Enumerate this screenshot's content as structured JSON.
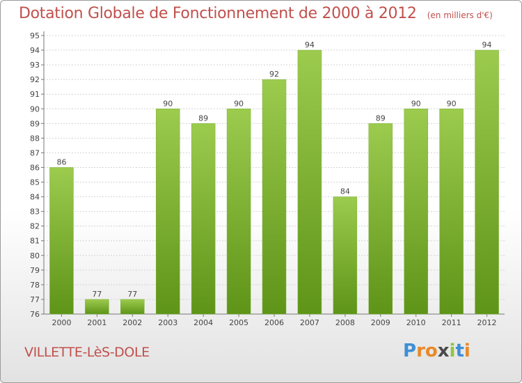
{
  "header": {
    "title": "Dotation Globale de Fonctionnement de 2000 à 2012",
    "subtitle": "(en milliers d'€)"
  },
  "footer": {
    "commune": "VILLETTE-LèS-DOLE",
    "logo": {
      "letters": [
        "P",
        "r",
        "o",
        "x",
        "i",
        "t",
        "i"
      ],
      "colors": [
        "#3d8fd6",
        "#e8892a",
        "#e8892a",
        "#4a4a4a",
        "#8cc63f",
        "#3d8fd6",
        "#e8892a"
      ]
    }
  },
  "colors": {
    "bar_light": "#9ccb4e",
    "bar_dark": "#5e9418",
    "title": "#c0504d",
    "grid": "#d4d4d4"
  },
  "chart_data": {
    "type": "bar",
    "categories": [
      "2000",
      "2001",
      "2002",
      "2003",
      "2004",
      "2005",
      "2006",
      "2007",
      "2008",
      "2009",
      "2010",
      "2011",
      "2012"
    ],
    "values": [
      86,
      77,
      77,
      90,
      89,
      90,
      92,
      94,
      84,
      89,
      90,
      90,
      94
    ],
    "data_labels": [
      "86",
      "77",
      "77",
      "90",
      "89",
      "90",
      "92",
      "94",
      "84",
      "89",
      "90",
      "90",
      "94"
    ],
    "yticks": [
      "76",
      "77",
      "78",
      "79",
      "80",
      "81",
      "82",
      "83",
      "84",
      "85",
      "86",
      "87",
      "88",
      "89",
      "90",
      "91",
      "92",
      "93",
      "94",
      "95"
    ],
    "ylim": [
      76,
      95
    ],
    "grid": true,
    "legend": "none"
  }
}
